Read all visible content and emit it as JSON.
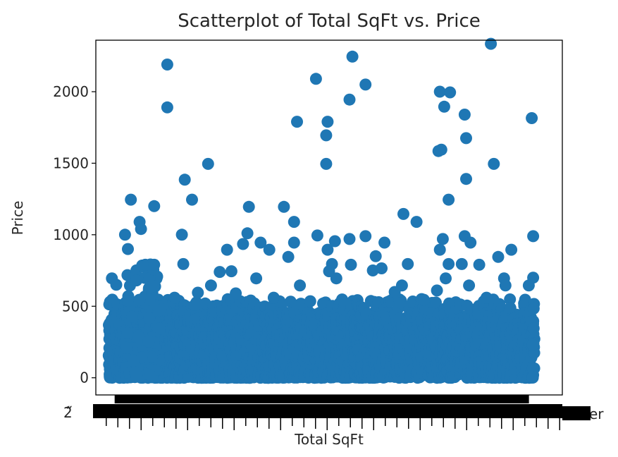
{
  "chart_data": {
    "type": "scatter",
    "title": "Scatterplot of Total SqFt vs. Price",
    "xlabel": "Total SqFt",
    "ylabel": "Price",
    "xlim": [
      -1,
      31
    ],
    "ylim": [
      -120,
      2360
    ],
    "y_ticks": [
      0,
      500,
      1000,
      1500,
      2000
    ],
    "x_axis_note": "categorical total sqft strings; thousands of overlapping tick labels",
    "x_tick_fragments": {
      "left": "2̃̋",
      "right": "er"
    },
    "grid": false,
    "legend": "none",
    "marker_color": "#1f77b4",
    "outliers": [
      {
        "x": 3.9,
        "y": 2190
      },
      {
        "x": 3.9,
        "y": 1890
      },
      {
        "x": 1.4,
        "y": 1245
      },
      {
        "x": 3.0,
        "y": 1200
      },
      {
        "x": 5.1,
        "y": 1385
      },
      {
        "x": 6.7,
        "y": 1495
      },
      {
        "x": 5.6,
        "y": 1245
      },
      {
        "x": 4.9,
        "y": 1000
      },
      {
        "x": 5.0,
        "y": 795
      },
      {
        "x": 1.0,
        "y": 1000
      },
      {
        "x": 2.0,
        "y": 1090
      },
      {
        "x": 2.1,
        "y": 1040
      },
      {
        "x": 1.2,
        "y": 900
      },
      {
        "x": 2.4,
        "y": 790
      },
      {
        "x": 3.0,
        "y": 790
      },
      {
        "x": 6.9,
        "y": 645
      },
      {
        "x": 7.5,
        "y": 740
      },
      {
        "x": 8.0,
        "y": 895
      },
      {
        "x": 8.3,
        "y": 745
      },
      {
        "x": 9.1,
        "y": 935
      },
      {
        "x": 9.5,
        "y": 1195
      },
      {
        "x": 9.4,
        "y": 1010
      },
      {
        "x": 10.3,
        "y": 945
      },
      {
        "x": 10.9,
        "y": 895
      },
      {
        "x": 10.0,
        "y": 695
      },
      {
        "x": 11.9,
        "y": 1195
      },
      {
        "x": 12.2,
        "y": 845
      },
      {
        "x": 12.6,
        "y": 1090
      },
      {
        "x": 12.6,
        "y": 945
      },
      {
        "x": 13.0,
        "y": 645
      },
      {
        "x": 12.8,
        "y": 1790
      },
      {
        "x": 14.1,
        "y": 2090
      },
      {
        "x": 14.9,
        "y": 1790
      },
      {
        "x": 14.8,
        "y": 1695
      },
      {
        "x": 14.8,
        "y": 1495
      },
      {
        "x": 14.2,
        "y": 995
      },
      {
        "x": 14.9,
        "y": 895
      },
      {
        "x": 15.4,
        "y": 955
      },
      {
        "x": 15.2,
        "y": 795
      },
      {
        "x": 15.0,
        "y": 745
      },
      {
        "x": 15.5,
        "y": 695
      },
      {
        "x": 16.6,
        "y": 2245
      },
      {
        "x": 16.4,
        "y": 1945
      },
      {
        "x": 17.5,
        "y": 2050
      },
      {
        "x": 16.4,
        "y": 970
      },
      {
        "x": 17.5,
        "y": 990
      },
      {
        "x": 16.5,
        "y": 790
      },
      {
        "x": 18.0,
        "y": 750
      },
      {
        "x": 18.8,
        "y": 945
      },
      {
        "x": 18.2,
        "y": 850
      },
      {
        "x": 18.6,
        "y": 765
      },
      {
        "x": 20.1,
        "y": 1145
      },
      {
        "x": 21.0,
        "y": 1090
      },
      {
        "x": 20.4,
        "y": 795
      },
      {
        "x": 20.0,
        "y": 645
      },
      {
        "x": 22.6,
        "y": 2000
      },
      {
        "x": 23.3,
        "y": 1995
      },
      {
        "x": 22.9,
        "y": 1895
      },
      {
        "x": 22.5,
        "y": 1585
      },
      {
        "x": 22.7,
        "y": 1595
      },
      {
        "x": 23.2,
        "y": 1245
      },
      {
        "x": 22.6,
        "y": 895
      },
      {
        "x": 22.8,
        "y": 970
      },
      {
        "x": 23.0,
        "y": 695
      },
      {
        "x": 22.4,
        "y": 610
      },
      {
        "x": 23.2,
        "y": 795
      },
      {
        "x": 24.3,
        "y": 1840
      },
      {
        "x": 24.4,
        "y": 1675
      },
      {
        "x": 24.4,
        "y": 1390
      },
      {
        "x": 24.3,
        "y": 990
      },
      {
        "x": 24.7,
        "y": 945
      },
      {
        "x": 24.1,
        "y": 795
      },
      {
        "x": 24.6,
        "y": 645
      },
      {
        "x": 25.3,
        "y": 790
      },
      {
        "x": 26.1,
        "y": 2335
      },
      {
        "x": 26.3,
        "y": 1495
      },
      {
        "x": 26.6,
        "y": 845
      },
      {
        "x": 27.5,
        "y": 895
      },
      {
        "x": 27.0,
        "y": 695
      },
      {
        "x": 27.1,
        "y": 645
      },
      {
        "x": 28.9,
        "y": 1815
      },
      {
        "x": 29.0,
        "y": 990
      },
      {
        "x": 29.0,
        "y": 700
      },
      {
        "x": 28.7,
        "y": 645
      },
      {
        "x": 25.8,
        "y": 560
      },
      {
        "x": 21.5,
        "y": 545
      },
      {
        "x": 19.5,
        "y": 600
      },
      {
        "x": 11.2,
        "y": 560
      },
      {
        "x": 8.6,
        "y": 590
      },
      {
        "x": 6.0,
        "y": 595
      },
      {
        "x": 4.4,
        "y": 560
      },
      {
        "x": 0.1,
        "y": 695
      },
      {
        "x": 0.4,
        "y": 650
      }
    ],
    "dense_cluster": {
      "x_range": [
        0,
        29
      ],
      "y_range": [
        0,
        450
      ]
    }
  }
}
